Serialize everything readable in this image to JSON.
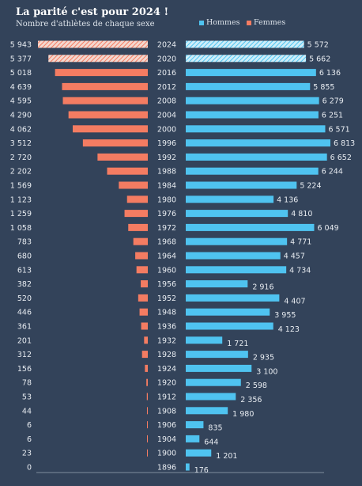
{
  "chart_data": {
    "type": "bar",
    "title": "La parité c'est pour 2024 !",
    "subtitle": "Nombre d'athlètes de chaque sexe",
    "legend": [
      {
        "name": "Hommes",
        "color": "#4fc3f0"
      },
      {
        "name": "Femmes",
        "color": "#f47c62"
      }
    ],
    "categories": [
      "2024",
      "2020",
      "2016",
      "2012",
      "2008",
      "2004",
      "2000",
      "1996",
      "1992",
      "1988",
      "1984",
      "1980",
      "1976",
      "1972",
      "1968",
      "1964",
      "1960",
      "1956",
      "1952",
      "1948",
      "1936",
      "1932",
      "1928",
      "1924",
      "1920",
      "1912",
      "1908",
      "1906",
      "1904",
      "1900",
      "1896"
    ],
    "series": [
      {
        "name": "Femmes",
        "values": [
          5943,
          5377,
          5018,
          4639,
          4595,
          4290,
          4062,
          3512,
          2720,
          2202,
          1569,
          1123,
          1259,
          1058,
          783,
          680,
          613,
          382,
          520,
          446,
          361,
          201,
          312,
          156,
          78,
          53,
          44,
          6,
          6,
          23,
          0
        ],
        "labels": [
          "5 943",
          "5 377",
          "5 018",
          "4 639",
          "4 595",
          "4 290",
          "4 062",
          "3 512",
          "2 720",
          "2 202",
          "1 569",
          "1 123",
          "1 259",
          "1 058",
          "783",
          "680",
          "613",
          "382",
          "520",
          "446",
          "361",
          "201",
          "312",
          "156",
          "78",
          "53",
          "44",
          "6",
          "6",
          "23",
          "0"
        ]
      },
      {
        "name": "Hommes",
        "values": [
          5572,
          5662,
          6136,
          5855,
          6279,
          6251,
          6571,
          6813,
          6652,
          6244,
          5224,
          4136,
          4810,
          6049,
          4771,
          4457,
          4734,
          2916,
          4407,
          3955,
          4123,
          1721,
          2935,
          3100,
          2598,
          2356,
          1980,
          835,
          644,
          1201,
          176
        ],
        "labels": [
          "5 572",
          "5 662",
          "6 136",
          "5 855",
          "6 279",
          "6 251",
          "6 571",
          "6 813",
          "6 652",
          "6 244",
          "5 224",
          "4 136",
          "4 810",
          "6 049",
          "4 771",
          "4 457",
          "4 734",
          "2 916",
          "4 407",
          "3 955",
          "4 123",
          "1 721",
          "2 935",
          "3 100",
          "2 598",
          "2 356",
          "1 980",
          "835",
          "644",
          "1 201",
          "176"
        ]
      }
    ],
    "projected_years": [
      "2024",
      "2020"
    ],
    "xlim": [
      0,
      7000
    ]
  }
}
